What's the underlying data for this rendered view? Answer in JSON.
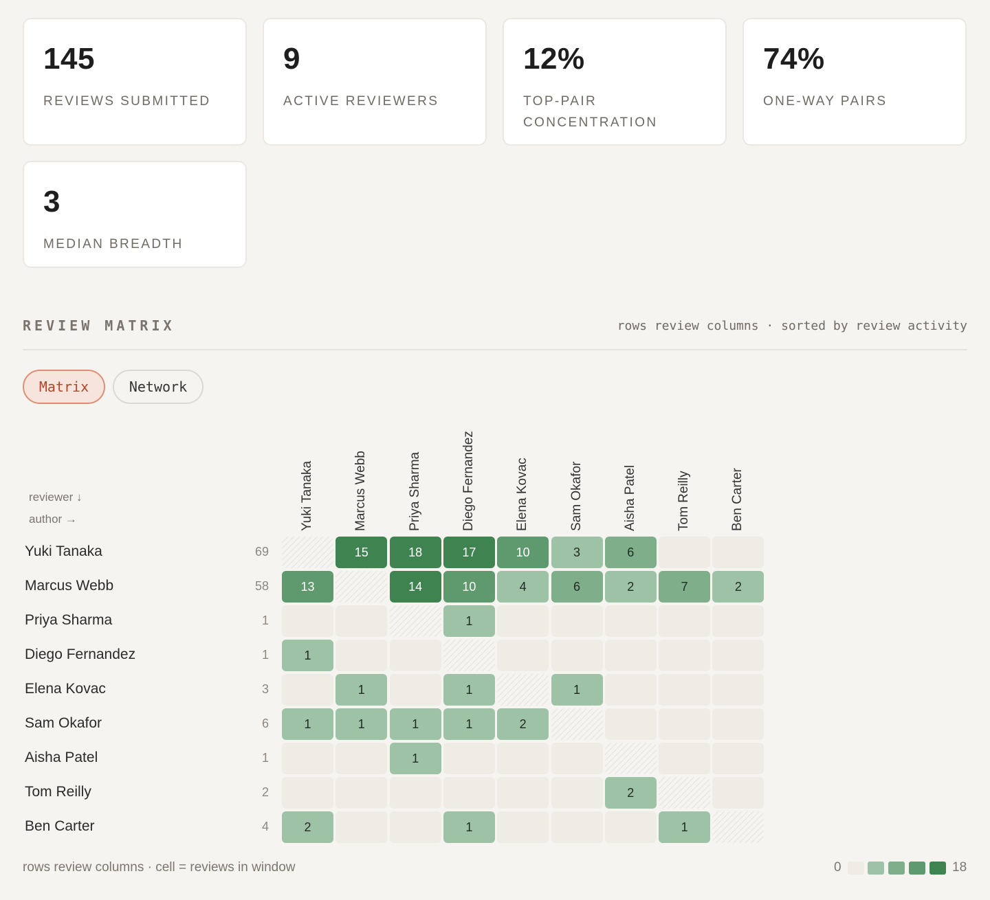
{
  "stats": [
    {
      "value": "145",
      "label": "REVIEWS SUBMITTED"
    },
    {
      "value": "9",
      "label": "ACTIVE REVIEWERS"
    },
    {
      "value": "12%",
      "label": "TOP-PAIR CONCENTRATION"
    },
    {
      "value": "74%",
      "label": "ONE-WAY PAIRS"
    },
    {
      "value": "3",
      "label": "MEDIAN BREADTH"
    }
  ],
  "section": {
    "title": "REVIEW MATRIX",
    "subtitle": "rows review columns · sorted by review activity"
  },
  "view_toggle": {
    "matrix_label": "Matrix",
    "network_label": "Network",
    "active": "Matrix"
  },
  "axis_key": {
    "reviewer": "reviewer ↓",
    "author": "author →"
  },
  "matrix": {
    "people": [
      "Yuki Tanaka",
      "Marcus Webb",
      "Priya Sharma",
      "Diego Fernandez",
      "Elena Kovac",
      "Sam Okafor",
      "Aisha Patel",
      "Tom Reilly",
      "Ben Carter"
    ],
    "row_totals": [
      "69",
      "58",
      "1",
      "1",
      "3",
      "6",
      "1",
      "2",
      "4"
    ],
    "cells": [
      [
        null,
        15,
        18,
        17,
        10,
        3,
        6,
        0,
        0
      ],
      [
        13,
        null,
        14,
        10,
        4,
        6,
        2,
        7,
        2
      ],
      [
        0,
        0,
        null,
        1,
        0,
        0,
        0,
        0,
        0
      ],
      [
        1,
        0,
        0,
        null,
        0,
        0,
        0,
        0,
        0
      ],
      [
        0,
        1,
        0,
        1,
        null,
        1,
        0,
        0,
        0
      ],
      [
        1,
        1,
        1,
        1,
        2,
        null,
        0,
        0,
        0
      ],
      [
        0,
        0,
        1,
        0,
        0,
        0,
        null,
        0,
        0
      ],
      [
        0,
        0,
        0,
        0,
        0,
        0,
        2,
        null,
        0
      ],
      [
        2,
        0,
        0,
        1,
        0,
        0,
        0,
        1,
        null
      ]
    ]
  },
  "footnote": "rows review columns · cell = reviews in window",
  "legend": {
    "min": "0",
    "max": "18",
    "colors": [
      "#efece6",
      "#9dc2a5",
      "#7eae8a",
      "#5e9a6d",
      "#3f8450"
    ]
  }
}
